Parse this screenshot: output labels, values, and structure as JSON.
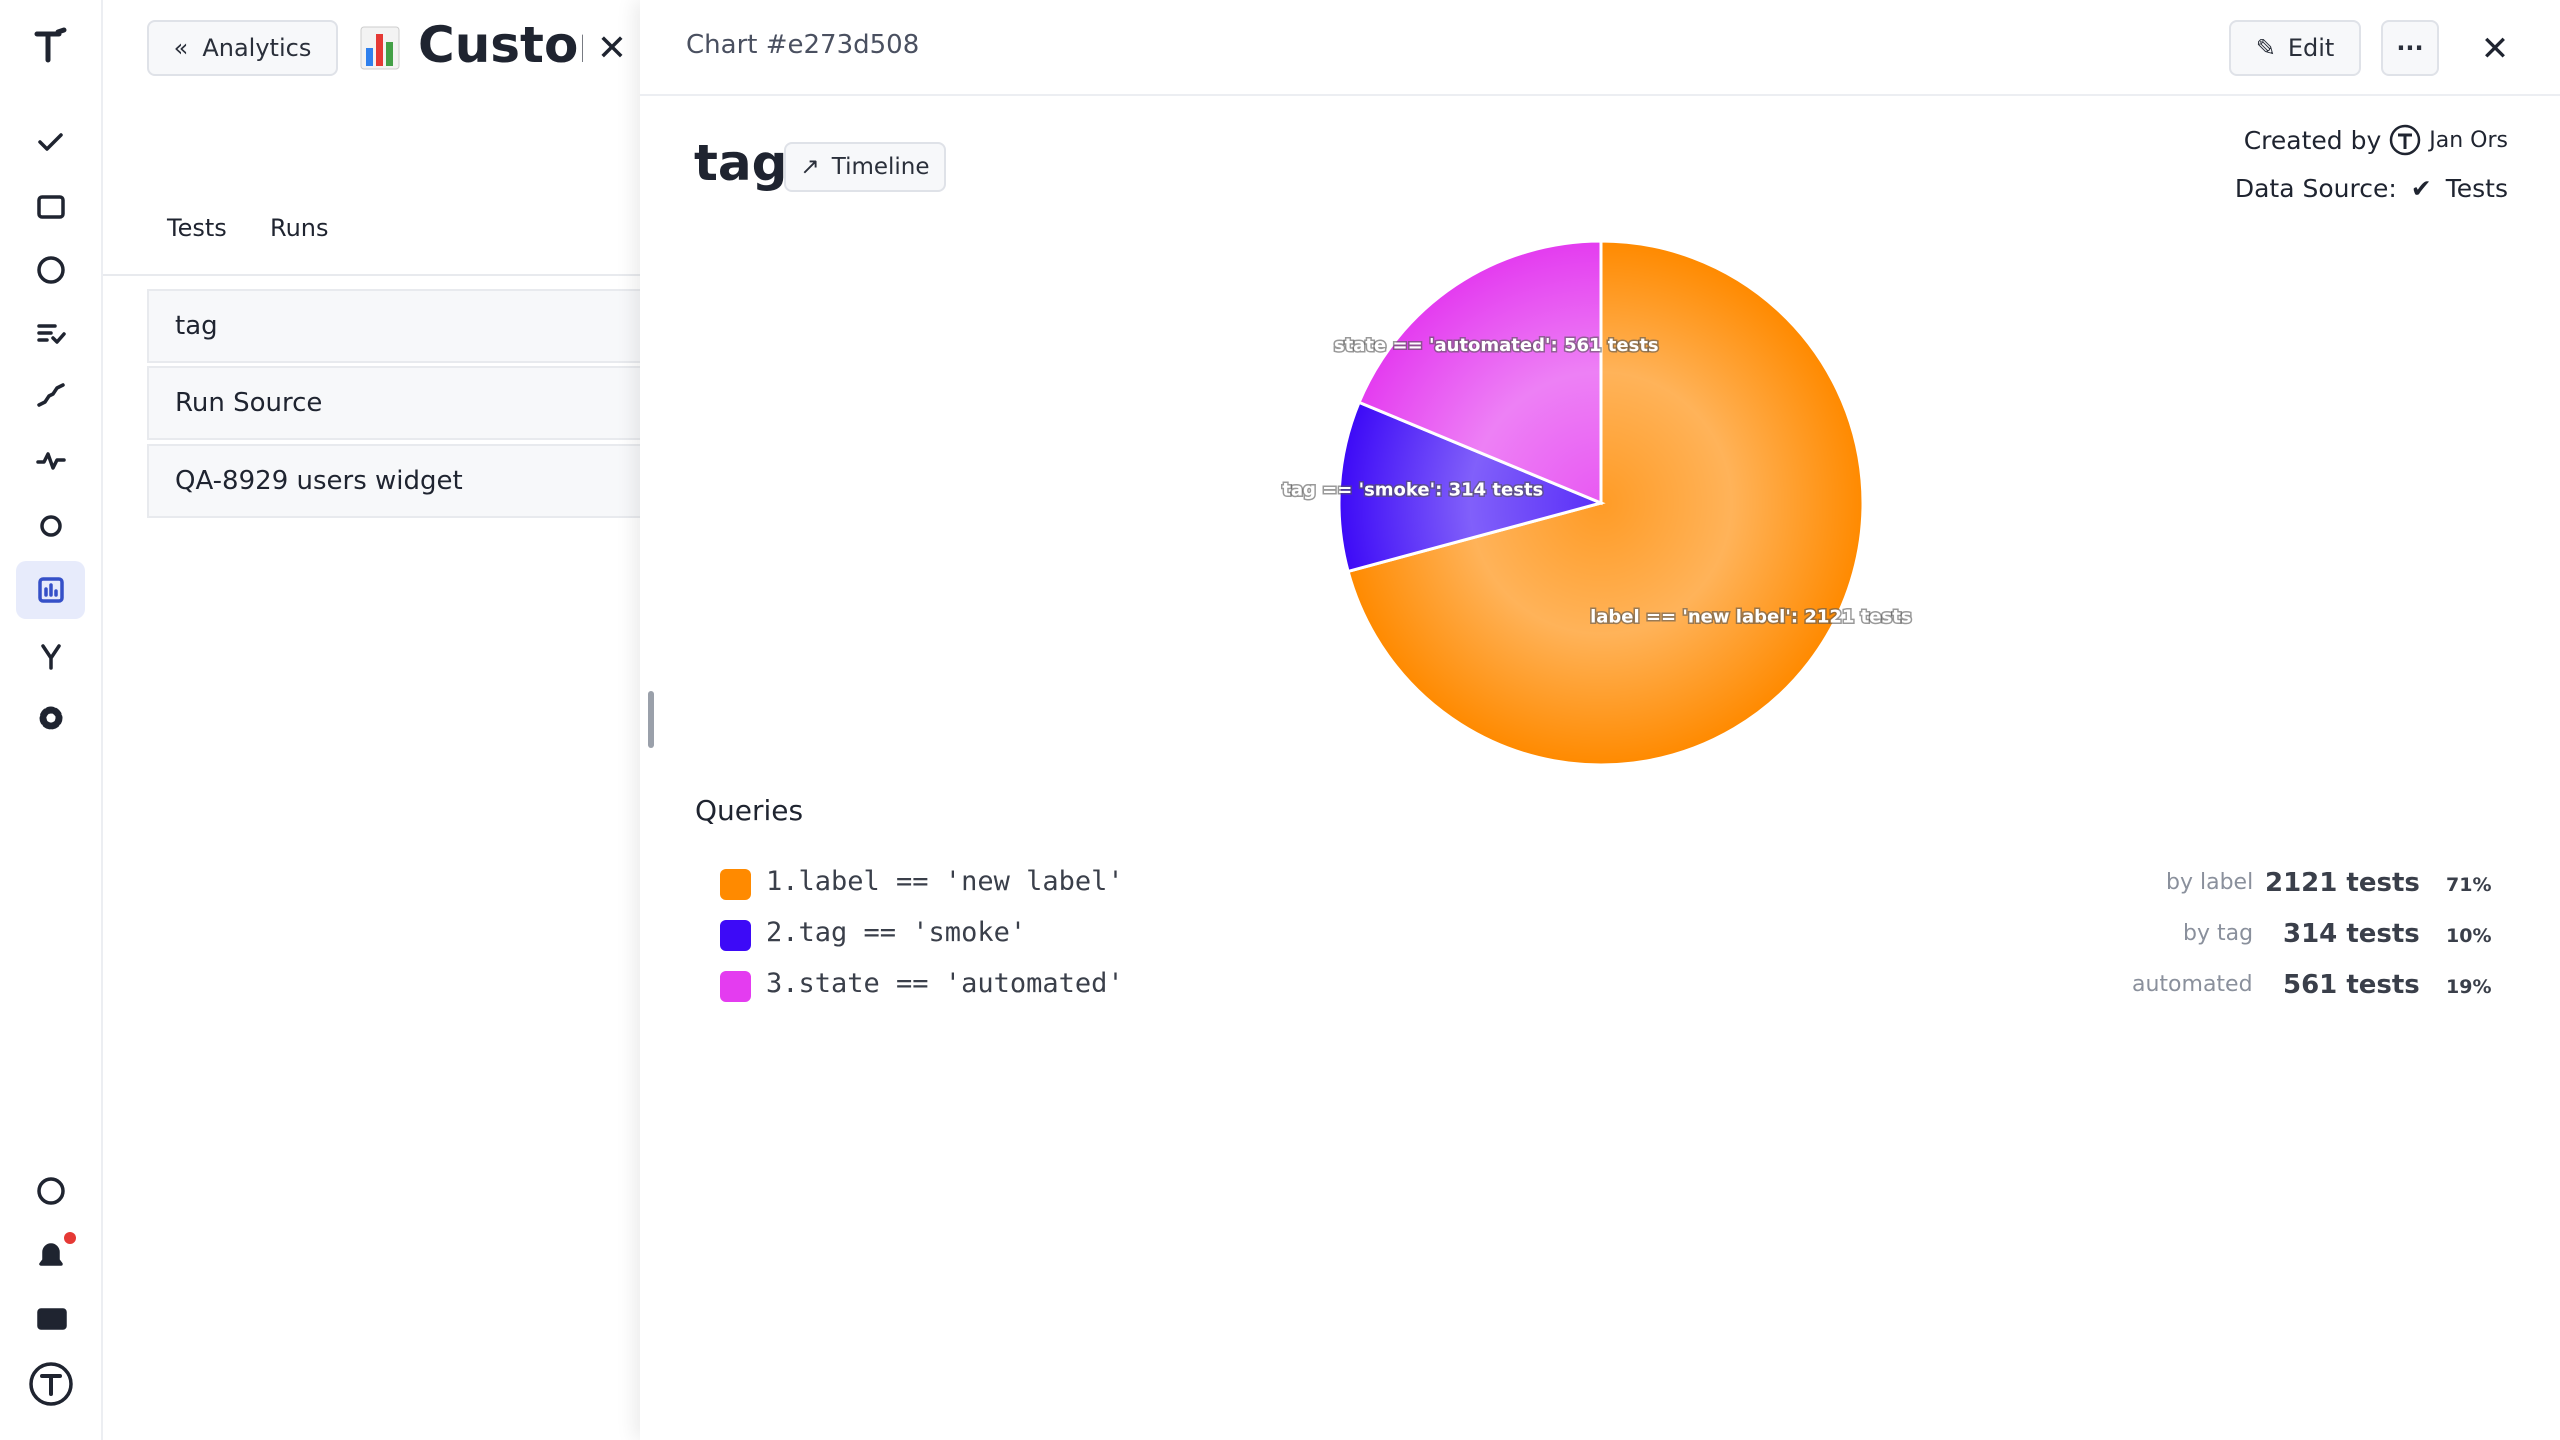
{
  "left_panel": {
    "back_button": "Analytics",
    "title": "Custom",
    "tabs": [
      "Tests",
      "Runs"
    ],
    "items": [
      "tag",
      "Run Source",
      "QA-8929 users widget"
    ]
  },
  "header": {
    "chart_id": "Chart #e273d508",
    "edit": "Edit"
  },
  "meta": {
    "created_by_label": "Created by",
    "author": "Jan Ors",
    "data_source_label": "Data Source:",
    "data_source": "Tests"
  },
  "chart_data": {
    "type": "pie",
    "title": "tag",
    "view_button": "Timeline",
    "values": [
      2121,
      314,
      561
    ],
    "value_labels": [
      "label == 'new label': 2121 tests",
      "tag == 'smoke': 314 tests",
      "state == 'automated': 561 tests"
    ],
    "colors": [
      "#ff8a00",
      "#3d0af7",
      "#e43cf0"
    ]
  },
  "queries": {
    "title": "Queries",
    "rows": [
      {
        "query": "1.label == 'new label'",
        "group": "by label",
        "count": "2121 tests",
        "share": "71%"
      },
      {
        "query": "2.tag == 'smoke'",
        "group": "by tag",
        "count": "314 tests",
        "share": "10%"
      },
      {
        "query": "3.state == 'automated'",
        "group": "automated",
        "count": "561 tests",
        "share": "19%"
      }
    ]
  }
}
